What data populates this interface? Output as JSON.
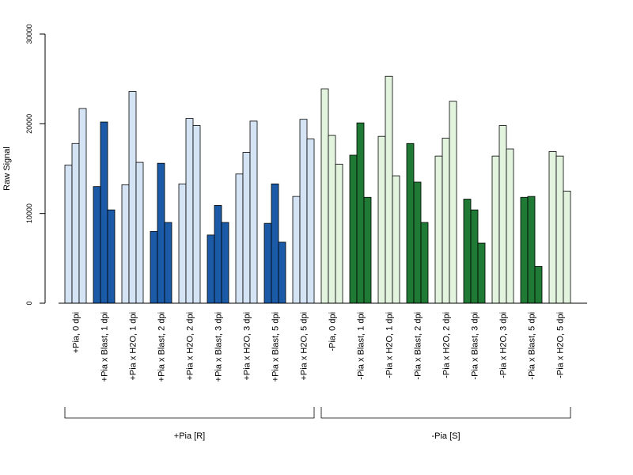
{
  "chart_data": {
    "type": "bar",
    "ylabel": "Raw Signal",
    "ylim": [
      0,
      30000
    ],
    "yticks": [
      0,
      10000,
      20000,
      30000
    ],
    "ytick_labels": [
      "0",
      "10000",
      "20000",
      "30000"
    ],
    "grid": false,
    "colors": {
      "pia_pos_h2o": "#d4e4f5",
      "pia_pos_blast": "#1a5aa6",
      "pia_neg_h2o": "#e2f4de",
      "pia_neg_blast": "#1e7a34"
    },
    "groups": [
      {
        "label": "+Pia, 0 dpi",
        "values": [
          15400,
          17800,
          21700
        ],
        "color": "pia_pos_h2o"
      },
      {
        "label": "+Pia x Blast, 1 dpi",
        "values": [
          13000,
          20200,
          10400
        ],
        "color": "pia_pos_blast"
      },
      {
        "label": "+Pia x H2O, 1 dpi",
        "values": [
          13200,
          23600,
          15700
        ],
        "color": "pia_pos_h2o"
      },
      {
        "label": "+Pia x Blast, 2 dpi",
        "values": [
          8000,
          15600,
          9000
        ],
        "color": "pia_pos_blast"
      },
      {
        "label": "+Pia x H2O, 2 dpi",
        "values": [
          13300,
          20600,
          19800
        ],
        "color": "pia_pos_h2o"
      },
      {
        "label": "+Pia x Blast, 3 dpi",
        "values": [
          7600,
          10900,
          9000
        ],
        "color": "pia_pos_blast"
      },
      {
        "label": "+Pia x H2O, 3 dpi",
        "values": [
          14400,
          16800,
          20300
        ],
        "color": "pia_pos_h2o"
      },
      {
        "label": "+Pia x Blast, 5 dpi",
        "values": [
          8900,
          13300,
          6800
        ],
        "color": "pia_pos_blast"
      },
      {
        "label": "+Pia x H2O, 5 dpi",
        "values": [
          11900,
          20500,
          18300
        ],
        "color": "pia_pos_h2o"
      },
      {
        "label": "-Pia, 0 dpi",
        "values": [
          23900,
          18700,
          15500
        ],
        "color": "pia_neg_h2o"
      },
      {
        "label": "-Pia x Blast, 1 dpi",
        "values": [
          16500,
          20100,
          11800
        ],
        "color": "pia_neg_blast"
      },
      {
        "label": "-Pia x H2O, 1 dpi",
        "values": [
          18600,
          25300,
          14200
        ],
        "color": "pia_neg_h2o"
      },
      {
        "label": "-Pia x Blast, 2 dpi",
        "values": [
          17800,
          13500,
          9000
        ],
        "color": "pia_neg_blast"
      },
      {
        "label": "-Pia x H2O, 2 dpi",
        "values": [
          16400,
          18400,
          22500
        ],
        "color": "pia_neg_h2o"
      },
      {
        "label": "-Pia x Blast, 3 dpi",
        "values": [
          11600,
          10400,
          6700
        ],
        "color": "pia_neg_blast"
      },
      {
        "label": "-Pia x H2O, 3 dpi",
        "values": [
          16400,
          19800,
          17200
        ],
        "color": "pia_neg_h2o"
      },
      {
        "label": "-Pia x Blast, 5 dpi",
        "values": [
          11800,
          11900,
          4100
        ],
        "color": "pia_neg_blast"
      },
      {
        "label": "-Pia x H2O, 5 dpi",
        "values": [
          16900,
          16400,
          12500
        ],
        "color": "pia_neg_h2o"
      }
    ],
    "brackets": [
      {
        "label": "+Pia [R]",
        "from_group": 0,
        "to_group": 8
      },
      {
        "label": "-Pia [S]",
        "from_group": 9,
        "to_group": 17
      }
    ]
  }
}
